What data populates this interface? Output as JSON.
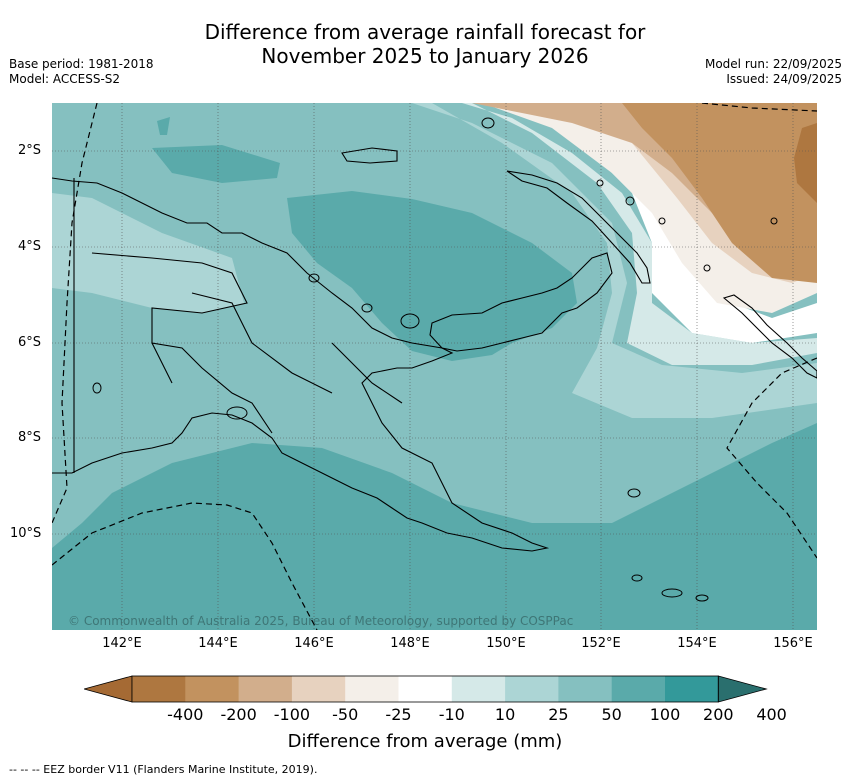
{
  "title": {
    "line1": "Difference from average rainfall forecast for",
    "line2": "November 2025 to January 2026"
  },
  "meta_left": {
    "base_period": "Base period: 1981-2018",
    "model": "Model: ACCESS-S2"
  },
  "meta_right": {
    "model_run": "Model run: 22/09/2025",
    "issued": "Issued: 24/09/2025"
  },
  "map": {
    "latitude_labels": [
      "2°S",
      "4°S",
      "6°S",
      "8°S",
      "10°S"
    ],
    "longitude_labels": [
      "142°E",
      "144°E",
      "146°E",
      "148°E",
      "150°E",
      "152°E",
      "154°E",
      "156°E"
    ],
    "copyright": "© Commonwealth of Australia 2025, Bureau of Meteorology, supported by COSPPac"
  },
  "legend": {
    "title": "Difference from average (mm)",
    "tick_labels": [
      "-400",
      "-200",
      "-100",
      "-50",
      "-25",
      "-10",
      "10",
      "25",
      "50",
      "100",
      "200",
      "400"
    ],
    "colors": [
      "#a56a34",
      "#ae7740",
      "#c2925f",
      "#d2ae8c",
      "#e7d2bf",
      "#f4efe9",
      "#ffffff",
      "#d5e9e8",
      "#acd5d5",
      "#85c0c0",
      "#5aaaaa",
      "#33999a",
      "#2a6f6e"
    ]
  },
  "footer": {
    "eez_note": "--  --  -- EEZ border V11 (Flanders Marine Institute, 2019)."
  }
}
